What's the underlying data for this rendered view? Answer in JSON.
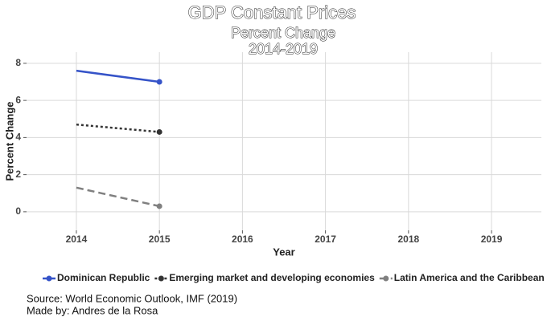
{
  "chart_data": {
    "type": "line",
    "title": "GDP Constant Prices",
    "subtitle": [
      "Percent Change",
      "2014-2019"
    ],
    "x_label": "Year",
    "y_label": "Percent Change",
    "x": [
      2014,
      2015
    ],
    "series": [
      {
        "name": "Dominican Republic",
        "color": "#3553c8",
        "dash": "solid",
        "values": [
          7.6,
          7.0
        ]
      },
      {
        "name": "Emerging market and developing economies",
        "color": "#333333",
        "dash": "dotted",
        "values": [
          4.7,
          4.3
        ]
      },
      {
        "name": "Latin America and the Caribbean",
        "color": "#808080",
        "dash": "dashed",
        "values": [
          1.3,
          0.3
        ]
      }
    ],
    "xlim": [
      2013.4,
      2019.6
    ],
    "xticks": [
      2014,
      2015,
      2016,
      2017,
      2018,
      2019
    ],
    "ylim": [
      -1,
      8.6
    ],
    "yticks": [
      0,
      2,
      4,
      6,
      8
    ],
    "grid": true,
    "legend": "bottom",
    "caption": [
      "Source: World Economic Outlook, IMF (2019)",
      "Made by: Andres de la Rosa"
    ]
  }
}
